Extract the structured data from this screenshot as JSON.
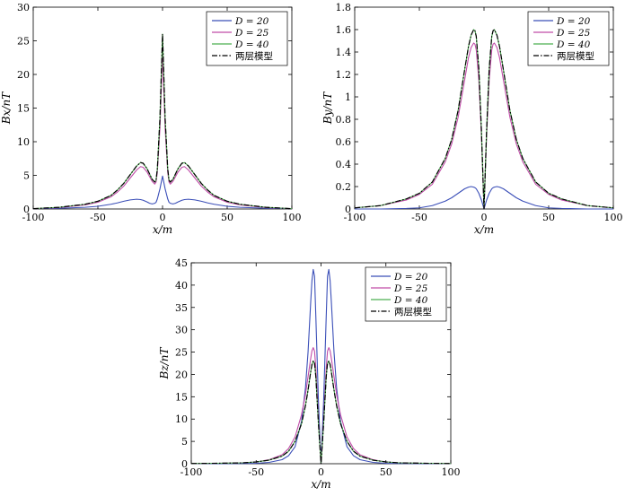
{
  "chart_data": [
    {
      "type": "line",
      "title": "",
      "xlabel": "x/m",
      "ylabel": "Bx/nT",
      "xlim": [
        -100,
        100
      ],
      "ylim": [
        0,
        30
      ],
      "x_ticks": [
        -100,
        -50,
        0,
        50,
        100
      ],
      "y_ticks": [
        0,
        5,
        10,
        15,
        20,
        25,
        30
      ],
      "grid": false,
      "legend_position": "top-right",
      "x": [
        -100,
        -80,
        -60,
        -50,
        -40,
        -35,
        -30,
        -25,
        -20,
        -17,
        -15,
        -12,
        -10,
        -8,
        -6,
        -5,
        -4,
        -2,
        0,
        2,
        4,
        5,
        6,
        8,
        10,
        12,
        15,
        17,
        20,
        25,
        30,
        35,
        40,
        50,
        60,
        80,
        100
      ],
      "series": [
        {
          "name": "D = 20",
          "color": "#3b4fb8",
          "dash": "solid",
          "values": [
            0.05,
            0.1,
            0.25,
            0.4,
            0.7,
            0.9,
            1.15,
            1.35,
            1.45,
            1.4,
            1.3,
            1.05,
            0.85,
            0.75,
            0.85,
            1.0,
            1.5,
            3.0,
            4.9,
            3.0,
            1.5,
            1.0,
            0.85,
            0.75,
            0.85,
            1.05,
            1.3,
            1.4,
            1.45,
            1.35,
            1.15,
            0.9,
            0.7,
            0.4,
            0.25,
            0.1,
            0.05
          ]
        },
        {
          "name": "D = 25",
          "color": "#c04ca8",
          "dash": "solid",
          "values": [
            0.05,
            0.2,
            0.6,
            1.0,
            1.8,
            2.5,
            3.4,
            4.6,
            5.8,
            6.3,
            6.2,
            5.5,
            4.8,
            4.1,
            3.7,
            4.0,
            5.5,
            12.0,
            23.2,
            12.0,
            5.5,
            4.0,
            3.7,
            4.1,
            4.8,
            5.5,
            6.2,
            6.3,
            5.8,
            4.6,
            3.4,
            2.5,
            1.8,
            1.0,
            0.6,
            0.2,
            0.05
          ]
        },
        {
          "name": "D = 40",
          "color": "#4caf50",
          "dash": "solid",
          "values": [
            0.05,
            0.25,
            0.7,
            1.15,
            2.0,
            2.8,
            3.8,
            5.1,
            6.4,
            6.9,
            6.8,
            6.0,
            5.2,
            4.4,
            4.0,
            4.3,
            6.0,
            13.5,
            26.0,
            13.5,
            6.0,
            4.3,
            4.0,
            4.4,
            5.2,
            6.0,
            6.8,
            6.9,
            6.4,
            5.1,
            3.8,
            2.8,
            2.0,
            1.15,
            0.7,
            0.25,
            0.05
          ]
        },
        {
          "name": "两层模型",
          "color": "#000000",
          "dash": "dashdot",
          "values": [
            0.05,
            0.25,
            0.7,
            1.15,
            2.0,
            2.8,
            3.8,
            5.1,
            6.4,
            6.9,
            6.8,
            6.0,
            5.2,
            4.4,
            4.0,
            4.3,
            6.0,
            13.5,
            26.0,
            13.5,
            6.0,
            4.3,
            4.0,
            4.4,
            5.2,
            6.0,
            6.8,
            6.9,
            6.4,
            5.1,
            3.8,
            2.8,
            2.0,
            1.15,
            0.7,
            0.25,
            0.05
          ]
        }
      ]
    },
    {
      "type": "line",
      "title": "",
      "xlabel": "x/m",
      "ylabel": "By/nT",
      "xlim": [
        -100,
        100
      ],
      "ylim": [
        0,
        1.8
      ],
      "x_ticks": [
        -100,
        -50,
        0,
        50,
        100
      ],
      "y_ticks": [
        0,
        0.2,
        0.4,
        0.6,
        0.8,
        1,
        1.2,
        1.4,
        1.6,
        1.8
      ],
      "grid": false,
      "legend_position": "top-right",
      "x": [
        -100,
        -80,
        -60,
        -50,
        -40,
        -30,
        -25,
        -20,
        -15,
        -12,
        -10,
        -8,
        -7,
        -6,
        -4,
        -2,
        0,
        2,
        4,
        6,
        7,
        8,
        10,
        12,
        15,
        20,
        25,
        30,
        40,
        50,
        60,
        80,
        100
      ],
      "series": [
        {
          "name": "D = 20",
          "color": "#3b4fb8",
          "dash": "solid",
          "values": [
            0.0,
            0.0,
            0.005,
            0.01,
            0.03,
            0.07,
            0.1,
            0.14,
            0.18,
            0.195,
            0.2,
            0.195,
            0.19,
            0.18,
            0.14,
            0.08,
            0.0,
            0.08,
            0.14,
            0.18,
            0.19,
            0.195,
            0.2,
            0.195,
            0.18,
            0.14,
            0.1,
            0.07,
            0.03,
            0.01,
            0.005,
            0.0,
            0.0
          ]
        },
        {
          "name": "D = 25",
          "color": "#c04ca8",
          "dash": "solid",
          "values": [
            0.01,
            0.03,
            0.08,
            0.13,
            0.22,
            0.42,
            0.58,
            0.82,
            1.15,
            1.35,
            1.44,
            1.48,
            1.47,
            1.42,
            1.15,
            0.65,
            0.0,
            0.65,
            1.15,
            1.42,
            1.47,
            1.48,
            1.44,
            1.35,
            1.15,
            0.82,
            0.58,
            0.42,
            0.22,
            0.13,
            0.08,
            0.03,
            0.01
          ]
        },
        {
          "name": "D = 40",
          "color": "#4caf50",
          "dash": "solid",
          "values": [
            0.01,
            0.03,
            0.09,
            0.14,
            0.24,
            0.45,
            0.62,
            0.88,
            1.24,
            1.45,
            1.55,
            1.6,
            1.59,
            1.54,
            1.25,
            0.7,
            0.0,
            0.7,
            1.25,
            1.54,
            1.59,
            1.6,
            1.55,
            1.45,
            1.24,
            0.88,
            0.62,
            0.45,
            0.24,
            0.14,
            0.09,
            0.03,
            0.01
          ]
        },
        {
          "name": "两层模型",
          "color": "#000000",
          "dash": "dashdot",
          "values": [
            0.01,
            0.03,
            0.09,
            0.14,
            0.24,
            0.45,
            0.62,
            0.88,
            1.24,
            1.45,
            1.55,
            1.6,
            1.59,
            1.54,
            1.25,
            0.7,
            0.0,
            0.7,
            1.25,
            1.54,
            1.59,
            1.6,
            1.55,
            1.45,
            1.24,
            0.88,
            0.62,
            0.45,
            0.24,
            0.14,
            0.09,
            0.03,
            0.01
          ]
        }
      ]
    },
    {
      "type": "line",
      "title": "",
      "xlabel": "x/m",
      "ylabel": "Bz/nT",
      "xlim": [
        -100,
        100
      ],
      "ylim": [
        0,
        45
      ],
      "x_ticks": [
        -100,
        -50,
        0,
        50,
        100
      ],
      "y_ticks": [
        0,
        5,
        10,
        15,
        20,
        25,
        30,
        35,
        40,
        45
      ],
      "grid": false,
      "legend_position": "top-right",
      "x": [
        -100,
        -80,
        -60,
        -50,
        -40,
        -30,
        -25,
        -20,
        -15,
        -12,
        -10,
        -8,
        -7,
        -6,
        -5,
        -4,
        -2,
        0,
        2,
        4,
        5,
        6,
        7,
        8,
        10,
        12,
        15,
        20,
        25,
        30,
        40,
        50,
        60,
        80,
        100
      ],
      "series": [
        {
          "name": "D = 20",
          "color": "#3b4fb8",
          "dash": "solid",
          "values": [
            0.0,
            0.0,
            0.05,
            0.1,
            0.3,
            0.9,
            1.8,
            3.8,
            9.5,
            17.0,
            25.0,
            36.0,
            41.0,
            43.5,
            42.0,
            33.0,
            14.0,
            0.0,
            14.0,
            33.0,
            42.0,
            43.5,
            41.0,
            36.0,
            25.0,
            17.0,
            9.5,
            3.8,
            1.8,
            0.9,
            0.3,
            0.1,
            0.05,
            0.0,
            0.0
          ]
        },
        {
          "name": "D = 25",
          "color": "#c04ca8",
          "dash": "solid",
          "values": [
            0.05,
            0.1,
            0.2,
            0.4,
            0.9,
            2.0,
            3.4,
            6.0,
            11.0,
            15.5,
            19.5,
            23.5,
            25.3,
            26.0,
            25.2,
            21.5,
            10.0,
            0.0,
            10.0,
            21.5,
            25.2,
            26.0,
            25.3,
            23.5,
            19.5,
            15.5,
            11.0,
            6.0,
            3.4,
            2.0,
            0.9,
            0.4,
            0.2,
            0.1,
            0.05
          ]
        },
        {
          "name": "D = 40",
          "color": "#4caf50",
          "dash": "solid",
          "values": [
            0.05,
            0.1,
            0.2,
            0.4,
            0.8,
            1.7,
            2.8,
            5.0,
            9.0,
            13.0,
            16.5,
            20.5,
            22.2,
            23.0,
            22.5,
            19.5,
            9.0,
            0.0,
            9.0,
            19.5,
            22.5,
            23.0,
            22.2,
            20.5,
            16.5,
            13.0,
            9.0,
            5.0,
            2.8,
            1.7,
            0.8,
            0.4,
            0.2,
            0.1,
            0.05
          ]
        },
        {
          "name": "两层模型",
          "color": "#000000",
          "dash": "dashdot",
          "values": [
            0.05,
            0.1,
            0.2,
            0.4,
            0.8,
            1.7,
            2.8,
            5.0,
            9.0,
            13.0,
            16.5,
            20.5,
            22.2,
            23.0,
            22.5,
            19.5,
            9.0,
            0.0,
            9.0,
            19.5,
            22.5,
            23.0,
            22.2,
            20.5,
            16.5,
            13.0,
            9.0,
            5.0,
            2.8,
            1.7,
            0.8,
            0.4,
            0.2,
            0.1,
            0.05
          ]
        }
      ]
    }
  ]
}
